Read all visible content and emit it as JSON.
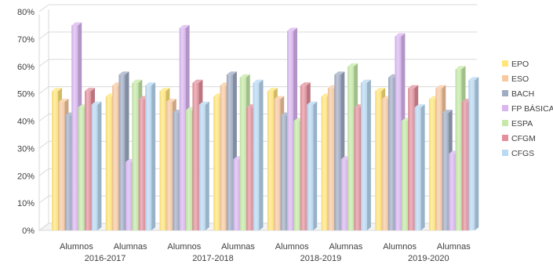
{
  "chart_data": {
    "type": "bar",
    "categories": [
      "Alumnos",
      "Alumnas",
      "Alumnos",
      "Alumnas",
      "Alumnos",
      "Alumnas",
      "Alumnos",
      "Alumnas"
    ],
    "groups": [
      {
        "label": "2016-2017"
      },
      {
        "label": "2017-2018"
      },
      {
        "label": "2018-2019"
      },
      {
        "label": "2019-2020"
      }
    ],
    "series": [
      {
        "name": "EPO",
        "color": "#FFE57A",
        "values": [
          51,
          49,
          51,
          49,
          51,
          49,
          51,
          48
        ]
      },
      {
        "name": "ESO",
        "color": "#F8C9A0",
        "values": [
          47,
          53,
          47,
          53,
          48,
          52,
          48,
          52
        ]
      },
      {
        "name": "BACH",
        "color": "#A0ACC4",
        "values": [
          42,
          57,
          43,
          57,
          42,
          57,
          56,
          43
        ]
      },
      {
        "name": "FP BÁSICA",
        "color": "#D9B6F0",
        "values": [
          75,
          25,
          74,
          26,
          73,
          26,
          71,
          28
        ]
      },
      {
        "name": "ESPA",
        "color": "#C5E9A8",
        "values": [
          45,
          54,
          44,
          56,
          40,
          60,
          40,
          59
        ]
      },
      {
        "name": "CFGM",
        "color": "#E3909C",
        "values": [
          51,
          48,
          54,
          45,
          53,
          45,
          52,
          47
        ]
      },
      {
        "name": "CFGS",
        "color": "#BAD9F2",
        "values": [
          46,
          53,
          46,
          54,
          46,
          54,
          45,
          55
        ]
      }
    ],
    "y_ticks": [
      "0%",
      "10%",
      "20%",
      "30%",
      "40%",
      "50%",
      "60%",
      "70%",
      "80%"
    ],
    "ylim": [
      0,
      80
    ],
    "grid": true,
    "legend": "right"
  }
}
